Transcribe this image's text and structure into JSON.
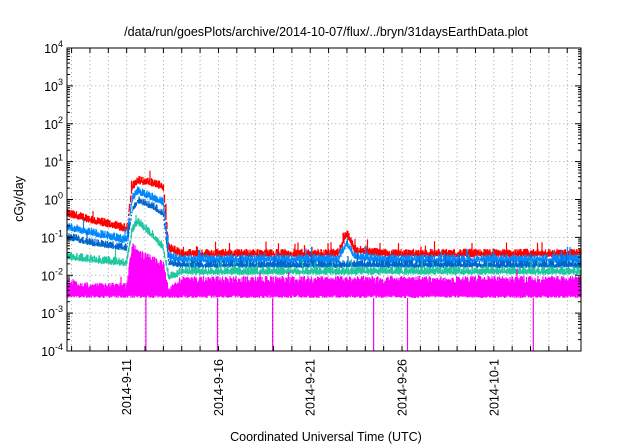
{
  "chart_data": {
    "type": "line",
    "title": "/data/run/goesPlots/archive/2014-10-07/flux/../bryn/31daysEarthData.plot",
    "xlabel": "Coordinated Universal Time (UTC)",
    "ylabel": "cGy/day",
    "y_scale": "log",
    "ylim": [
      0.0001,
      10000
    ],
    "y_ticks": [
      {
        "value": 0.0001,
        "base": "10",
        "exp": "-4"
      },
      {
        "value": 0.001,
        "base": "10",
        "exp": "-3"
      },
      {
        "value": 0.01,
        "base": "10",
        "exp": "-2"
      },
      {
        "value": 0.1,
        "base": "10",
        "exp": "-1"
      },
      {
        "value": 1,
        "base": "10",
        "exp": "0"
      },
      {
        "value": 10,
        "base": "10",
        "exp": "1"
      },
      {
        "value": 100,
        "base": "10",
        "exp": "2"
      },
      {
        "value": 1000,
        "base": "10",
        "exp": "3"
      },
      {
        "value": 10000,
        "base": "10",
        "exp": "4"
      }
    ],
    "xlim": [
      "2014-09-07T18:00",
      "2014-10-05T18:00"
    ],
    "x_ticks": [
      "2014-9-11",
      "2014-9-16",
      "2014-9-21",
      "2014-9-26",
      "2014-10-1"
    ],
    "grid": true,
    "legend": "none",
    "series": [
      {
        "color": "#ff0000",
        "baseline": [
          [
            7.75,
            0.4
          ],
          [
            9.0,
            0.28
          ],
          [
            11.0,
            0.16
          ],
          [
            11.3,
            2.0
          ],
          [
            11.6,
            3.0
          ],
          [
            12.5,
            2.5
          ],
          [
            13.0,
            2.0
          ],
          [
            13.3,
            0.05
          ],
          [
            14.0,
            0.035
          ],
          [
            20.0,
            0.035
          ],
          [
            22.5,
            0.035
          ],
          [
            23.0,
            0.12
          ],
          [
            23.4,
            0.045
          ],
          [
            25.0,
            0.035
          ],
          [
            35.75,
            0.035
          ]
        ],
        "noise": 0.22,
        "spike_prob": 0.02
      },
      {
        "color": "#0088ff",
        "baseline": [
          [
            7.75,
            0.18
          ],
          [
            9.0,
            0.13
          ],
          [
            11.0,
            0.08
          ],
          [
            11.3,
            1.0
          ],
          [
            11.6,
            1.6
          ],
          [
            12.5,
            1.0
          ],
          [
            13.0,
            0.8
          ],
          [
            13.3,
            0.03
          ],
          [
            14.0,
            0.025
          ],
          [
            20.0,
            0.025
          ],
          [
            22.5,
            0.025
          ],
          [
            23.0,
            0.07
          ],
          [
            23.4,
            0.03
          ],
          [
            25.0,
            0.025
          ],
          [
            35.75,
            0.025
          ]
        ],
        "noise": 0.22,
        "spike_prob": 0.02
      },
      {
        "color": "#0066cc",
        "baseline": [
          [
            7.75,
            0.1
          ],
          [
            9.0,
            0.07
          ],
          [
            11.0,
            0.05
          ],
          [
            11.3,
            0.5
          ],
          [
            11.6,
            0.9
          ],
          [
            12.5,
            0.6
          ],
          [
            13.0,
            0.4
          ],
          [
            13.3,
            0.02
          ],
          [
            14.0,
            0.018
          ],
          [
            35.75,
            0.018
          ]
        ],
        "noise": 0.2,
        "spike_prob": 0.015
      },
      {
        "color": "#20c8a0",
        "baseline": [
          [
            7.75,
            0.03
          ],
          [
            9.0,
            0.025
          ],
          [
            11.0,
            0.02
          ],
          [
            11.3,
            0.15
          ],
          [
            11.6,
            0.25
          ],
          [
            12.5,
            0.1
          ],
          [
            13.0,
            0.05
          ],
          [
            13.3,
            0.008
          ],
          [
            14.0,
            0.012
          ],
          [
            35.75,
            0.012
          ]
        ],
        "noise": 0.22,
        "spike_prob": 0.015
      },
      {
        "color": "#ff00ff",
        "baseline": [
          [
            7.75,
            0.005
          ],
          [
            9.0,
            0.004
          ],
          [
            11.0,
            0.004
          ],
          [
            11.3,
            0.05
          ],
          [
            11.6,
            0.03
          ],
          [
            12.5,
            0.02
          ],
          [
            13.0,
            0.015
          ],
          [
            13.3,
            0.003
          ],
          [
            14.0,
            0.006
          ],
          [
            35.75,
            0.006
          ]
        ],
        "noise": 0.3,
        "spike_prob": 0.01,
        "floor": 0.0025,
        "dropouts": [
          12.05,
          15.95,
          18.95,
          24.45,
          26.3,
          33.15
        ]
      }
    ]
  }
}
